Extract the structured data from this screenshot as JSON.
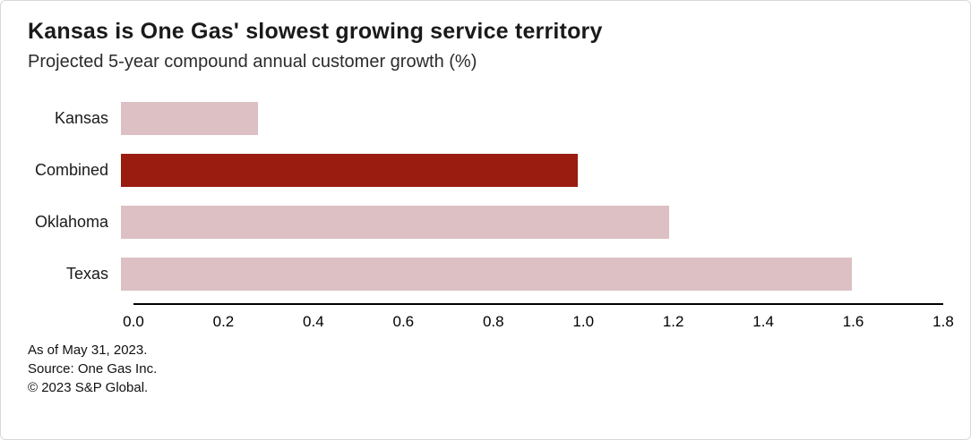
{
  "accent_colors": {
    "bar_light": "#dcc0c3",
    "bar_dark": "#9a1b10",
    "axis": "#000000"
  },
  "header": {
    "title": "Kansas is One Gas' slowest growing service territory",
    "subtitle": "Projected 5-year compound annual customer growth (%)"
  },
  "chart_data": {
    "type": "bar",
    "orientation": "horizontal",
    "title": "Kansas is One Gas' slowest growing service territory",
    "subtitle": "Projected 5-year compound annual customer growth (%)",
    "categories": [
      "Kansas",
      "Combined",
      "Oklahoma",
      "Texas"
    ],
    "values": [
      0.3,
      1.0,
      1.2,
      1.6
    ],
    "highlight_category": "Combined",
    "xlabel": "",
    "ylabel": "",
    "xlim": [
      0,
      1.8
    ],
    "x_ticks": [
      0.0,
      0.2,
      0.4,
      0.6,
      0.8,
      1.0,
      1.2,
      1.4,
      1.6,
      1.8
    ],
    "grid": false,
    "legend": false
  },
  "footer": {
    "as_of": "As of May 31, 2023.",
    "source": "Source: One Gas Inc.",
    "copyright": "© 2023 S&P Global."
  }
}
